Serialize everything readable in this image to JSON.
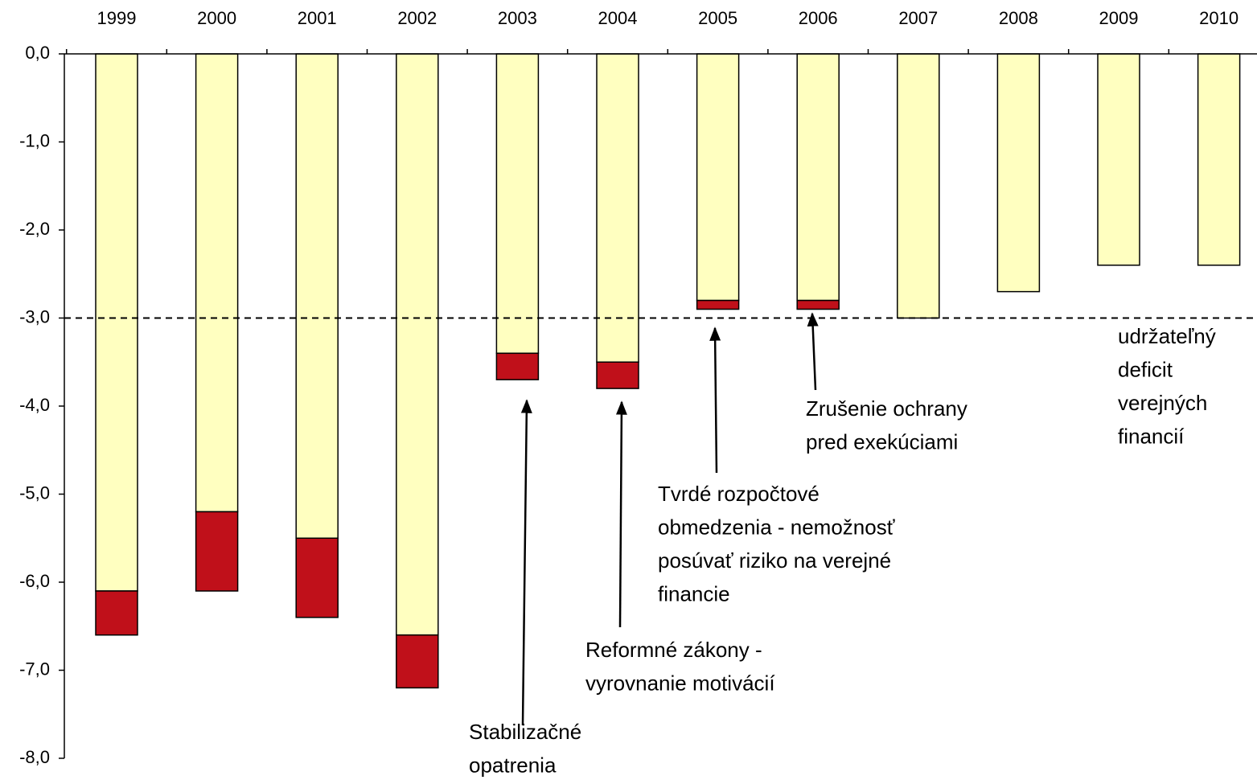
{
  "chart_data": {
    "type": "bar",
    "stacked": true,
    "categories": [
      "1999",
      "2000",
      "2001",
      "2002",
      "2003",
      "2004",
      "2005",
      "2006",
      "2007",
      "2008",
      "2009",
      "2010"
    ],
    "series": [
      {
        "color": "#ffffc0",
        "values": [
          -6.1,
          -5.2,
          -5.5,
          -6.6,
          -3.4,
          -3.5,
          -2.8,
          -2.8,
          -3.0,
          -2.7,
          -2.4,
          -2.4
        ]
      },
      {
        "color": "#c0101a",
        "values": [
          -0.5,
          -0.9,
          -0.9,
          -0.6,
          -0.3,
          -0.3,
          -0.1,
          -0.1,
          0,
          0,
          0,
          0
        ]
      }
    ],
    "ylim": [
      -8,
      0
    ],
    "yticks": [
      {
        "value": 0,
        "label": "0,0"
      },
      {
        "value": -1,
        "label": "-1,0"
      },
      {
        "value": -2,
        "label": "-2,0"
      },
      {
        "value": -3,
        "label": "-3,0"
      },
      {
        "value": -4,
        "label": "-4,0"
      },
      {
        "value": -5,
        "label": "-5,0"
      },
      {
        "value": -6,
        "label": "-6,0"
      },
      {
        "value": -7,
        "label": "-7,0"
      },
      {
        "value": -8,
        "label": "-8,0"
      }
    ],
    "reference_line": -3,
    "annotations": [
      {
        "lines": [
          "Stabilizačné",
          "opatrenia"
        ]
      },
      {
        "lines": [
          "Reformné zákony -",
          "vyrovnanie motivácií"
        ]
      },
      {
        "lines": [
          "Tvrdé rozpočtové",
          "obmedzenia - nemožnosť",
          "posúvať riziko na verejné",
          "financie"
        ]
      },
      {
        "lines": [
          "Zrušenie ochrany",
          "pred exekúciami"
        ]
      },
      {
        "lines": [
          "udržateľný",
          "deficit",
          "verejných",
          "financií"
        ]
      }
    ]
  }
}
